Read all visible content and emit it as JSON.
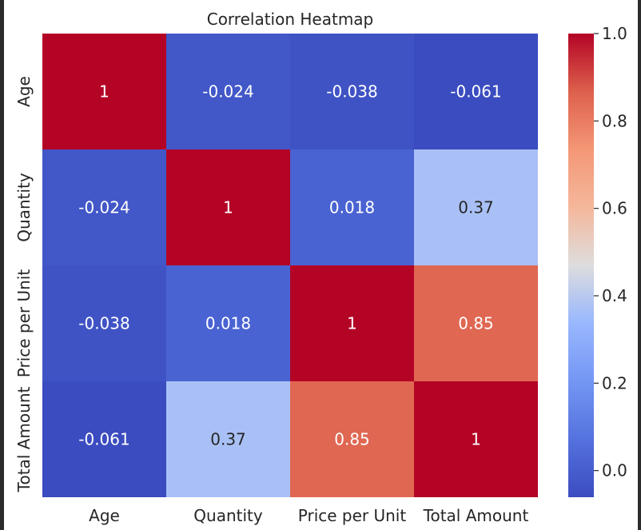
{
  "chart_data": {
    "type": "heatmap",
    "title": "Correlation Heatmap",
    "xlabel": "",
    "ylabel": "",
    "row_labels": [
      "Age",
      "Quantity",
      "Price per Unit",
      "Total Amount"
    ],
    "col_labels": [
      "Age",
      "Quantity",
      "Price per Unit",
      "Total Amount"
    ],
    "values": [
      [
        1,
        -0.024,
        -0.038,
        -0.061
      ],
      [
        -0.024,
        1,
        0.018,
        0.37
      ],
      [
        -0.038,
        0.018,
        1,
        0.85
      ],
      [
        -0.061,
        0.37,
        0.85,
        1
      ]
    ],
    "annotations": [
      [
        "1",
        "-0.024",
        "-0.038",
        "-0.061"
      ],
      [
        "-0.024",
        "1",
        "0.018",
        "0.37"
      ],
      [
        "-0.038",
        "0.018",
        "1",
        "0.85"
      ],
      [
        "-0.061",
        "0.37",
        "0.85",
        "1"
      ]
    ],
    "colormap": "coolwarm",
    "vmin": -0.061,
    "vmax": 1.0,
    "colorbar": {
      "ticks": [
        0.0,
        0.2,
        0.4,
        0.6,
        0.8,
        1.0
      ],
      "tick_labels": [
        "0.0",
        "0.2",
        "0.4",
        "0.6",
        "0.8",
        "1.0"
      ]
    },
    "grid": false,
    "legend": "colorbar-right"
  }
}
